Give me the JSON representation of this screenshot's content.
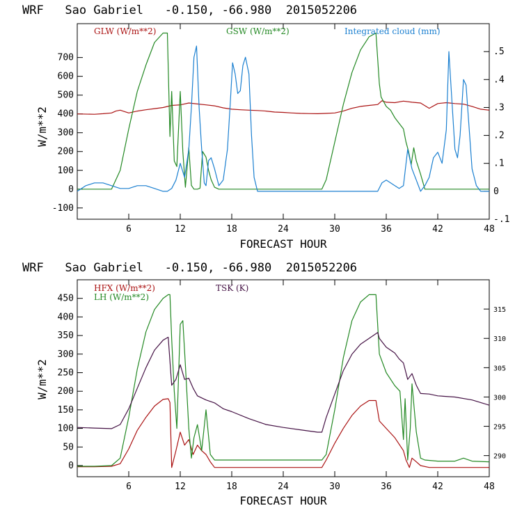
{
  "chart_data": [
    {
      "type": "line",
      "title": "WRF   Sao Gabriel   -0.150, -66.980  2015052206",
      "xlabel": "FORECAST HOUR",
      "ylabel": "W/m**2",
      "xlim": [
        0,
        48
      ],
      "ylim": [
        -160,
        880
      ],
      "y2lim": [
        -0.1,
        0.6
      ],
      "x_ticks": [
        6,
        12,
        18,
        24,
        30,
        36,
        42,
        48
      ],
      "y_ticks": [
        -100,
        0,
        100,
        200,
        300,
        400,
        500,
        600,
        700
      ],
      "y2_ticks": [
        -0.1,
        0,
        0.1,
        0.2,
        0.3,
        0.4,
        0.5
      ],
      "y2_tick_labels": [
        "-.1",
        "0",
        ".1",
        ".2",
        ".3",
        ".4",
        ".5"
      ],
      "series": [
        {
          "name": "GLW (W/m**2)",
          "color": "#aa1111",
          "axis": "left",
          "x": [
            0,
            2,
            3,
            4,
            4.5,
            5,
            6,
            7,
            8,
            9,
            10,
            11,
            12,
            13,
            14,
            15,
            16,
            17,
            18,
            19,
            20,
            21,
            22,
            23,
            24,
            25,
            26,
            27,
            28,
            29,
            30,
            31,
            32,
            33,
            34,
            35,
            35.5,
            36,
            37,
            38,
            39,
            40,
            41,
            42,
            43,
            44,
            45,
            46,
            47,
            48
          ],
          "values": [
            400,
            398,
            401,
            405,
            415,
            420,
            405,
            415,
            422,
            428,
            434,
            445,
            448,
            458,
            453,
            448,
            443,
            432,
            425,
            422,
            420,
            418,
            415,
            410,
            408,
            405,
            403,
            402,
            401,
            403,
            405,
            415,
            430,
            440,
            445,
            450,
            470,
            462,
            460,
            468,
            462,
            458,
            430,
            455,
            460,
            455,
            452,
            440,
            425,
            420
          ]
        },
        {
          "name": "GSW (W/m**2)",
          "color": "#228822",
          "axis": "left",
          "x": [
            0,
            4,
            5,
            6,
            7,
            8,
            9,
            10,
            10.5,
            10.8,
            11.0,
            11.3,
            11.6,
            12.0,
            12.3,
            12.6,
            13.0,
            13.3,
            13.6,
            14.0,
            14.3,
            14.6,
            15.0,
            15.3,
            15.6,
            16.0,
            16.5,
            17.0,
            28.5,
            29,
            30,
            31,
            32,
            33,
            34,
            34.8,
            35.2,
            35.4,
            36.0,
            36.5,
            37.0,
            37.5,
            38.0,
            38.3,
            38.6,
            38.9,
            39.2,
            39.5,
            40.0,
            40.5,
            48
          ],
          "values": [
            0,
            0,
            100,
            320,
            520,
            660,
            780,
            830,
            830,
            280,
            520,
            150,
            120,
            520,
            200,
            10,
            220,
            20,
            0,
            0,
            5,
            200,
            170,
            100,
            50,
            10,
            0,
            0,
            0,
            50,
            250,
            450,
            620,
            740,
            810,
            830,
            560,
            490,
            440,
            420,
            380,
            350,
            320,
            250,
            200,
            130,
            220,
            150,
            80,
            0,
            0
          ]
        },
        {
          "name": "Integrated cloud (mm)",
          "color": "#1a7fd0",
          "axis": "right",
          "x": [
            0,
            1,
            2,
            3,
            4,
            5,
            6,
            7,
            8,
            9,
            10,
            10.5,
            11,
            11.5,
            12,
            12.5,
            13,
            13.3,
            13.6,
            13.9,
            14.2,
            14.5,
            14.8,
            15,
            15.3,
            15.6,
            16,
            16.5,
            17,
            17.5,
            17.8,
            18.1,
            18.4,
            18.7,
            19,
            19.3,
            19.6,
            20,
            20.3,
            20.6,
            21,
            21.3,
            22,
            30,
            33,
            35,
            35.5,
            36,
            36.5,
            37,
            37.5,
            38,
            38.5,
            39,
            39.5,
            40,
            40.5,
            41,
            41.5,
            42,
            42.5,
            43,
            43.3,
            43.6,
            44,
            44.3,
            44.6,
            45,
            45.3,
            45.6,
            46,
            46.5,
            47,
            48
          ],
          "values": [
            0,
            0.02,
            0.03,
            0.03,
            0.02,
            0.01,
            0.01,
            0.02,
            0.02,
            0.01,
            0,
            0,
            0.01,
            0.04,
            0.1,
            0.05,
            0.15,
            0.3,
            0.48,
            0.52,
            0.3,
            0.15,
            0.03,
            0.02,
            0.11,
            0.12,
            0.08,
            0.02,
            0.04,
            0.15,
            0.3,
            0.46,
            0.42,
            0.35,
            0.36,
            0.45,
            0.48,
            0.42,
            0.2,
            0.05,
            0,
            0,
            0,
            0,
            0,
            0,
            0.03,
            0.04,
            0.03,
            0.02,
            0.01,
            0.02,
            0.15,
            0.08,
            0.04,
            0,
            0.02,
            0.05,
            0.12,
            0.14,
            0.1,
            0.22,
            0.5,
            0.35,
            0.15,
            0.12,
            0.2,
            0.4,
            0.38,
            0.25,
            0.08,
            0.02,
            0,
            0
          ]
        }
      ]
    },
    {
      "type": "line",
      "title": "WRF   Sao Gabriel   -0.150, -66.980  2015052206",
      "xlabel": "FORECAST HOUR",
      "ylabel": "W/m**2",
      "xlim": [
        0,
        48
      ],
      "ylim": [
        -30,
        500
      ],
      "y2lim": [
        286.4,
        320
      ],
      "x_ticks": [
        6,
        12,
        18,
        24,
        30,
        36,
        42,
        48
      ],
      "y_ticks": [
        0,
        50,
        100,
        150,
        200,
        250,
        300,
        350,
        400,
        450
      ],
      "y2_ticks": [
        290,
        295,
        300,
        305,
        310,
        315
      ],
      "y2_tick_labels": [
        "290",
        "295",
        "300",
        "305",
        "310",
        "315"
      ],
      "series": [
        {
          "name": "HFX (W/m**2)",
          "color": "#aa1111",
          "axis": "left",
          "x": [
            0,
            2,
            4,
            5,
            6,
            7,
            8,
            9,
            10,
            10.6,
            10.8,
            11,
            11.5,
            12,
            12.5,
            13,
            13.5,
            14,
            14.5,
            15,
            15.5,
            16,
            28.5,
            29,
            30,
            31,
            32,
            33,
            34,
            34.8,
            35.2,
            36,
            37,
            38,
            38.3,
            38.7,
            39,
            39.5,
            40,
            41,
            42,
            43,
            44,
            45,
            46,
            48
          ],
          "values": [
            -3,
            -3,
            -2,
            5,
            45,
            95,
            130,
            160,
            178,
            180,
            170,
            -5,
            40,
            90,
            55,
            70,
            30,
            55,
            40,
            30,
            10,
            -5,
            -5,
            15,
            60,
            100,
            135,
            160,
            175,
            175,
            120,
            100,
            75,
            40,
            15,
            -5,
            20,
            10,
            0,
            -5,
            -5,
            -5,
            -5,
            -5,
            -5,
            -5
          ]
        },
        {
          "name": "LH (W/m**2)",
          "color": "#228822",
          "axis": "left",
          "x": [
            0,
            2,
            4,
            5,
            6,
            7,
            8,
            9,
            10,
            10.6,
            10.8,
            11,
            11.3,
            11.6,
            12,
            12.3,
            12.6,
            13,
            13.3,
            13.6,
            14,
            14.5,
            15,
            15.5,
            16,
            28.5,
            29,
            30,
            31,
            32,
            33,
            34,
            34.8,
            35.2,
            36,
            37,
            37.6,
            38,
            38.2,
            38.5,
            38.8,
            39,
            39.5,
            40,
            40.5,
            42,
            44,
            45,
            46,
            48
          ],
          "values": [
            -2,
            -2,
            0,
            20,
            130,
            260,
            360,
            420,
            450,
            460,
            460,
            340,
            200,
            100,
            380,
            390,
            270,
            100,
            20,
            75,
            110,
            40,
            150,
            30,
            15,
            15,
            30,
            150,
            290,
            390,
            440,
            460,
            460,
            300,
            250,
            215,
            200,
            70,
            180,
            15,
            100,
            220,
            90,
            20,
            15,
            12,
            12,
            20,
            12,
            10
          ]
        },
        {
          "name": "TSK (K)",
          "color": "#441144",
          "axis": "right",
          "x": [
            0,
            2,
            4,
            5,
            6,
            7,
            8,
            9,
            10,
            10.6,
            11,
            11.5,
            12,
            12.5,
            13,
            13.5,
            14,
            15,
            16,
            17,
            18,
            20,
            22,
            24,
            26,
            28,
            28.5,
            29,
            30,
            31,
            32,
            33,
            34,
            35,
            35.2,
            36,
            37,
            37.5,
            38,
            38.5,
            39,
            39.5,
            40,
            41,
            42,
            44,
            46,
            48
          ],
          "values": [
            294.8,
            294.7,
            294.6,
            295.3,
            298,
            301.5,
            305,
            308,
            309.7,
            310.2,
            302,
            303,
            305.5,
            303,
            303.2,
            301.5,
            300.2,
            299.5,
            299,
            298,
            297.5,
            296.3,
            295.3,
            294.8,
            294.4,
            294,
            294,
            296.5,
            300.5,
            304.5,
            307.3,
            309,
            310,
            311,
            310,
            308.5,
            307.5,
            306.5,
            305.8,
            303,
            304,
            302,
            300.6,
            300.5,
            300.2,
            300,
            299.5,
            298.6
          ]
        }
      ]
    }
  ]
}
